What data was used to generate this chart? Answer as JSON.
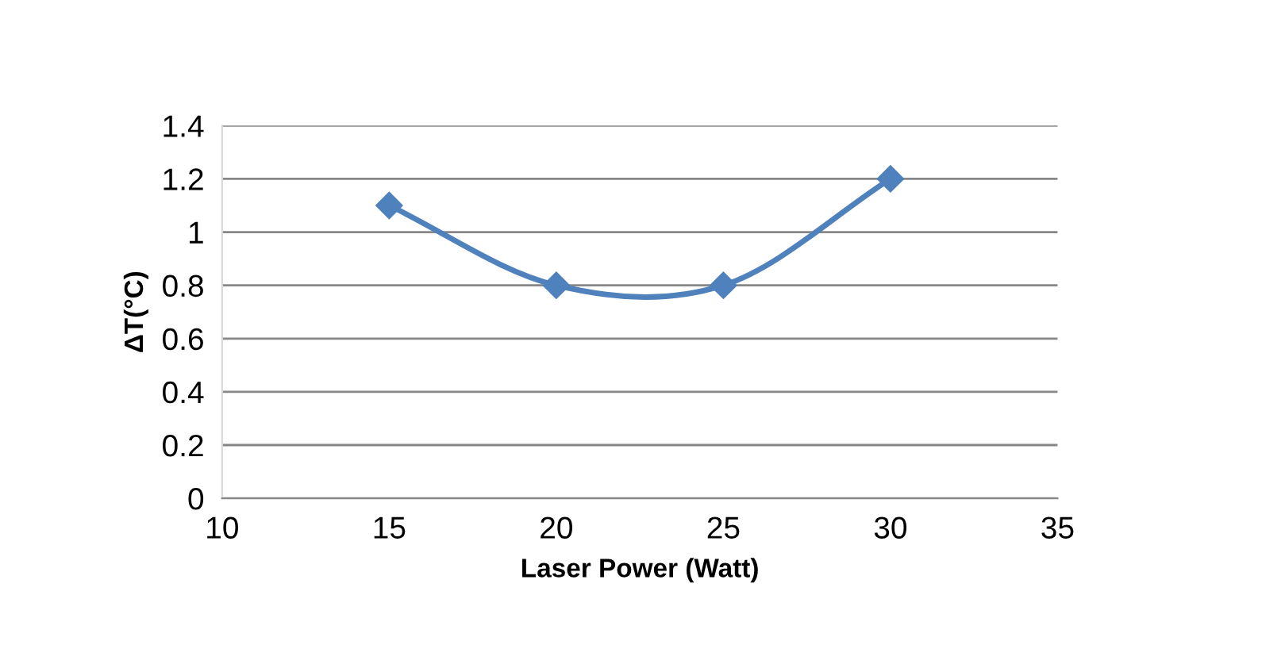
{
  "chart_data": {
    "type": "line",
    "xlabel": "Laser Power (Watt)",
    "ylabel": "ΔT(°C)",
    "x": [
      15,
      20,
      25,
      30
    ],
    "series": [
      {
        "color": "#4f81bd",
        "values": [
          1.1,
          0.8,
          0.8,
          1.2
        ]
      }
    ],
    "xlim": [
      10,
      35
    ],
    "xticks": [
      10,
      15,
      20,
      25,
      30,
      35
    ],
    "ylim": [
      0,
      1.4
    ],
    "yticks": [
      0,
      0.2,
      0.4,
      0.6,
      0.8,
      1,
      1.2,
      1.4
    ],
    "grid": "y",
    "marker": "diamond",
    "line_style": "solid",
    "legend": false
  }
}
